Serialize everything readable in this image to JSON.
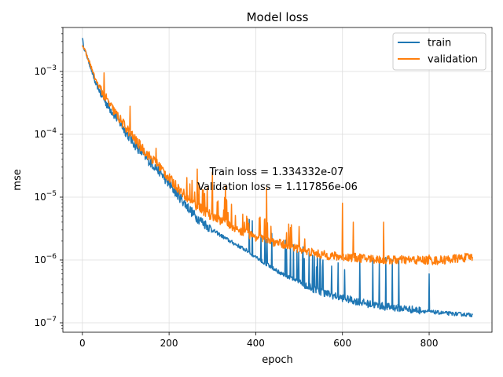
{
  "chart_data": {
    "type": "line",
    "title": "Model loss",
    "xlabel": "epoch",
    "ylabel": "mse",
    "xlim": [
      -45,
      945
    ],
    "ylim_log10": [
      -7.15,
      -2.3
    ],
    "yscale": "log",
    "grid": true,
    "legend_position": "top-right",
    "xticks": [
      0,
      200,
      400,
      600,
      800
    ],
    "xtick_labels": [
      "0",
      "200",
      "400",
      "600",
      "800"
    ],
    "yticks_exp": [
      -7,
      -6,
      -5,
      -4,
      -3
    ],
    "ytick_labels": [
      {
        "base": "10",
        "exp": "−7"
      },
      {
        "base": "10",
        "exp": "−6"
      },
      {
        "base": "10",
        "exp": "−5"
      },
      {
        "base": "10",
        "exp": "−4"
      },
      {
        "base": "10",
        "exp": "−3"
      }
    ],
    "annotation": [
      "Train loss = 1.334332e-07",
      "Validation loss = 1.117856e-06"
    ],
    "series": [
      {
        "name": "train",
        "color": "#1f77b4",
        "anchors": [
          [
            0,
            0.0036
          ],
          [
            2,
            0.0026
          ],
          [
            10,
            0.0018
          ],
          [
            20,
            0.0011
          ],
          [
            30,
            0.00065
          ],
          [
            40,
            0.00048
          ],
          [
            60,
            0.00028
          ],
          [
            80,
            0.00018
          ],
          [
            100,
            0.00011
          ],
          [
            120,
            7e-05
          ],
          [
            150,
            4e-05
          ],
          [
            180,
            2.5e-05
          ],
          [
            200,
            1.6e-05
          ],
          [
            230,
            9e-06
          ],
          [
            260,
            5e-06
          ],
          [
            300,
            3e-06
          ],
          [
            340,
            2e-06
          ],
          [
            380,
            1.4e-06
          ],
          [
            420,
            9e-07
          ],
          [
            460,
            6e-07
          ],
          [
            500,
            4.5e-07
          ],
          [
            540,
            3.3e-07
          ],
          [
            580,
            2.7e-07
          ],
          [
            620,
            2.3e-07
          ],
          [
            660,
            2e-07
          ],
          [
            700,
            1.8e-07
          ],
          [
            740,
            1.7e-07
          ],
          [
            800,
            1.5e-07
          ],
          [
            850,
            1.4e-07
          ],
          [
            900,
            1.334332e-07
          ]
        ],
        "spikes": [
          [
            535,
            1.2e-06
          ],
          [
            555,
            1e-06
          ],
          [
            575,
            8e-07
          ],
          [
            590,
            9e-07
          ],
          [
            605,
            7e-07
          ],
          [
            640,
            1.1e-06
          ],
          [
            670,
            1e-06
          ],
          [
            685,
            1e-06
          ],
          [
            700,
            1.1e-06
          ],
          [
            715,
            1e-06
          ],
          [
            730,
            1e-06
          ],
          [
            800,
            6e-07
          ]
        ]
      },
      {
        "name": "validation",
        "color": "#ff7f0e",
        "anchors": [
          [
            0,
            0.0027
          ],
          [
            10,
            0.0018
          ],
          [
            20,
            0.0012
          ],
          [
            30,
            0.00075
          ],
          [
            40,
            0.00055
          ],
          [
            60,
            0.00032
          ],
          [
            80,
            0.0002
          ],
          [
            100,
            0.00013
          ],
          [
            120,
            8.5e-05
          ],
          [
            150,
            4.8e-05
          ],
          [
            180,
            3e-05
          ],
          [
            200,
            2e-05
          ],
          [
            230,
            1.2e-05
          ],
          [
            260,
            7.5e-06
          ],
          [
            300,
            5e-06
          ],
          [
            340,
            3.5e-06
          ],
          [
            380,
            2.6e-06
          ],
          [
            420,
            2.1e-06
          ],
          [
            460,
            1.8e-06
          ],
          [
            500,
            1.5e-06
          ],
          [
            540,
            1.25e-06
          ],
          [
            580,
            1.15e-06
          ],
          [
            620,
            1.1e-06
          ],
          [
            660,
            1.05e-06
          ],
          [
            700,
            1e-06
          ],
          [
            760,
            1e-06
          ],
          [
            820,
            9.8e-07
          ],
          [
            900,
            1.117856e-06
          ]
        ],
        "spikes": [
          [
            50,
            0.00095
          ],
          [
            110,
            0.00028
          ],
          [
            170,
            6e-05
          ],
          [
            265,
            2.8e-05
          ],
          [
            300,
            2.5e-05
          ],
          [
            330,
            1.5e-05
          ],
          [
            425,
            1.4e-05
          ],
          [
            600,
            8e-06
          ],
          [
            625,
            4e-06
          ],
          [
            695,
            4e-06
          ],
          [
            800,
            1.2e-06
          ]
        ]
      }
    ]
  }
}
